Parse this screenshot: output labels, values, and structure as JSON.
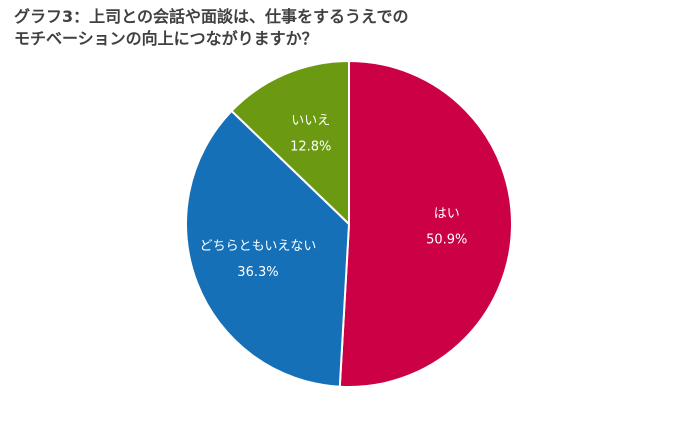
{
  "chart_data": {
    "type": "pie",
    "title": [
      "グラフ3：上司との会話や面談は、仕事をするうえでの",
      "モチベーションの向上につながりますか？"
    ],
    "categories": [
      "はい",
      "どちらともいえない",
      "いいえ"
    ],
    "values": [
      50.9,
      36.3,
      12.8
    ],
    "value_labels": [
      "50.9%",
      "36.3%",
      "12.8%"
    ],
    "colors": [
      "#cc0044",
      "#1570b8",
      "#6b9a12"
    ]
  }
}
